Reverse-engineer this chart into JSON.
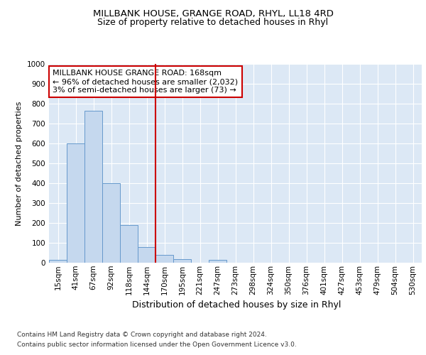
{
  "title1": "MILLBANK HOUSE, GRANGE ROAD, RHYL, LL18 4RD",
  "title2": "Size of property relative to detached houses in Rhyl",
  "xlabel": "Distribution of detached houses by size in Rhyl",
  "ylabel": "Number of detached properties",
  "footnote1": "Contains HM Land Registry data © Crown copyright and database right 2024.",
  "footnote2": "Contains public sector information licensed under the Open Government Licence v3.0.",
  "bar_labels": [
    "15sqm",
    "41sqm",
    "67sqm",
    "92sqm",
    "118sqm",
    "144sqm",
    "170sqm",
    "195sqm",
    "221sqm",
    "247sqm",
    "273sqm",
    "298sqm",
    "324sqm",
    "350sqm",
    "376sqm",
    "401sqm",
    "427sqm",
    "453sqm",
    "479sqm",
    "504sqm",
    "530sqm"
  ],
  "bar_values": [
    15,
    600,
    765,
    400,
    190,
    80,
    40,
    18,
    0,
    15,
    0,
    0,
    0,
    0,
    0,
    0,
    0,
    0,
    0,
    0,
    0
  ],
  "bar_color": "#c5d8ee",
  "bar_edge_color": "#6699cc",
  "vline_index": 6,
  "vline_color": "#cc0000",
  "annotation_text1": "MILLBANK HOUSE GRANGE ROAD: 168sqm",
  "annotation_text2": "← 96% of detached houses are smaller (2,032)",
  "annotation_text3": "3% of semi-detached houses are larger (73) →",
  "annotation_box_facecolor": "#ffffff",
  "annotation_box_edgecolor": "#cc0000",
  "ylim": [
    0,
    1000
  ],
  "yticks": [
    0,
    100,
    200,
    300,
    400,
    500,
    600,
    700,
    800,
    900,
    1000
  ],
  "fig_facecolor": "#ffffff",
  "plot_facecolor": "#dce8f5",
  "grid_color": "#ffffff",
  "title1_fontsize": 9.5,
  "title2_fontsize": 9,
  "ylabel_fontsize": 8,
  "xlabel_fontsize": 9,
  "tick_fontsize": 7.5,
  "footnote_fontsize": 6.5,
  "annot_fontsize": 8
}
